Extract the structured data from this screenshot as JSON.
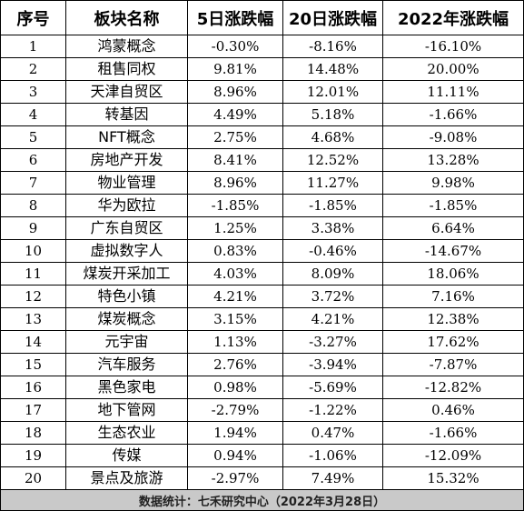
{
  "headers": [
    "序号",
    "板块名称",
    "5日涨跌幅",
    "20日涨跌幅",
    "2022年涨跌幅"
  ],
  "rows": [
    {
      "no": "1",
      "name": "鸿蒙概念",
      "d5": "-0.30%",
      "d20": "-8.16%",
      "y2022": "-16.10%"
    },
    {
      "no": "2",
      "name": "租售同权",
      "d5": "9.81%",
      "d20": "14.48%",
      "y2022": "20.00%"
    },
    {
      "no": "3",
      "name": "天津自贸区",
      "d5": "8.96%",
      "d20": "12.01%",
      "y2022": "11.11%"
    },
    {
      "no": "4",
      "name": "转基因",
      "d5": "4.49%",
      "d20": "5.18%",
      "y2022": "-1.66%"
    },
    {
      "no": "5",
      "name": "NFT概念",
      "d5": "2.75%",
      "d20": "4.68%",
      "y2022": "-9.08%"
    },
    {
      "no": "6",
      "name": "房地产开发",
      "d5": "8.41%",
      "d20": "12.52%",
      "y2022": "13.28%"
    },
    {
      "no": "7",
      "name": "物业管理",
      "d5": "8.96%",
      "d20": "11.27%",
      "y2022": "9.98%"
    },
    {
      "no": "8",
      "name": "华为欧拉",
      "d5": "-1.85%",
      "d20": "-1.85%",
      "y2022": "-1.85%"
    },
    {
      "no": "9",
      "name": "广东自贸区",
      "d5": "1.25%",
      "d20": "3.38%",
      "y2022": "6.64%"
    },
    {
      "no": "10",
      "name": "虚拟数字人",
      "d5": "0.83%",
      "d20": "-0.46%",
      "y2022": "-14.67%"
    },
    {
      "no": "11",
      "name": "煤炭开采加工",
      "d5": "4.03%",
      "d20": "8.09%",
      "y2022": "18.06%"
    },
    {
      "no": "12",
      "name": "特色小镇",
      "d5": "4.21%",
      "d20": "3.72%",
      "y2022": "7.16%"
    },
    {
      "no": "13",
      "name": "煤炭概念",
      "d5": "3.15%",
      "d20": "4.21%",
      "y2022": "12.38%"
    },
    {
      "no": "14",
      "name": "元宇宙",
      "d5": "1.13%",
      "d20": "-3.27%",
      "y2022": "17.62%"
    },
    {
      "no": "15",
      "name": "汽车服务",
      "d5": "2.76%",
      "d20": "-3.94%",
      "y2022": "-7.87%"
    },
    {
      "no": "16",
      "name": "黑色家电",
      "d5": "0.98%",
      "d20": "-5.69%",
      "y2022": "-12.82%"
    },
    {
      "no": "17",
      "name": "地下管网",
      "d5": "-2.79%",
      "d20": "-1.22%",
      "y2022": "0.46%"
    },
    {
      "no": "18",
      "name": "生态农业",
      "d5": "1.94%",
      "d20": "0.47%",
      "y2022": "-1.66%"
    },
    {
      "no": "19",
      "name": "传媒",
      "d5": "0.94%",
      "d20": "-1.06%",
      "y2022": "-12.09%"
    },
    {
      "no": "20",
      "name": "景点及旅游",
      "d5": "-2.97%",
      "d20": "7.49%",
      "y2022": "15.32%"
    }
  ],
  "footer": "数据统计：七禾研究中心（2022年3月28日）"
}
